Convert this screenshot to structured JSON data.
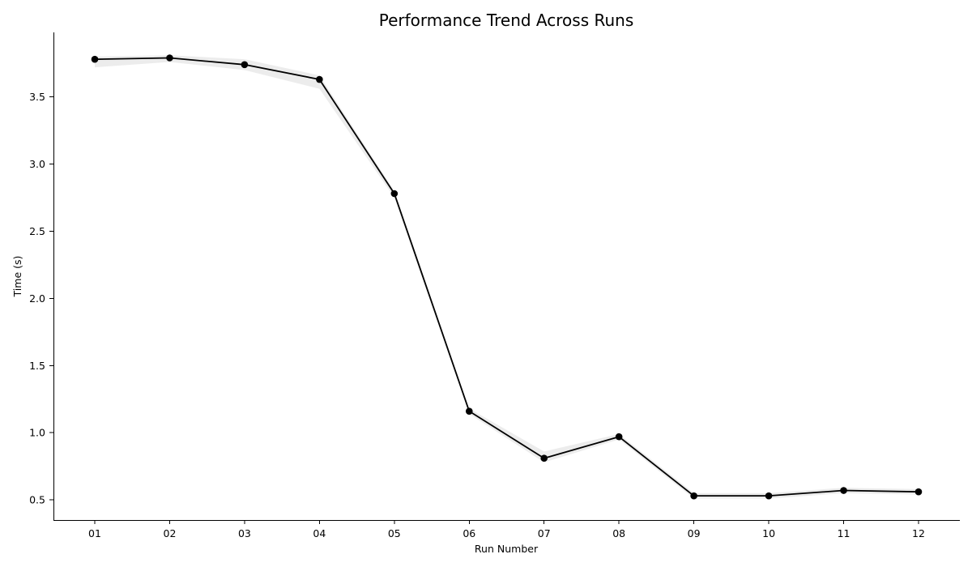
{
  "chart_data": {
    "type": "line",
    "title": "Performance Trend Across Runs",
    "xlabel": "Run Number",
    "ylabel": "Time (s)",
    "categories": [
      "01",
      "02",
      "03",
      "04",
      "05",
      "06",
      "07",
      "08",
      "09",
      "10",
      "11",
      "12"
    ],
    "series": [
      {
        "values": [
          3.78,
          3.79,
          3.74,
          3.63,
          2.78,
          1.16,
          0.81,
          0.97,
          0.53,
          0.53,
          0.57,
          0.56
        ],
        "band_lower": [
          3.72,
          3.76,
          3.7,
          3.56,
          2.75,
          1.14,
          0.78,
          0.95,
          0.51,
          0.51,
          0.55,
          0.54
        ],
        "band_upper": [
          3.8,
          3.81,
          3.78,
          3.66,
          2.8,
          1.18,
          0.86,
          0.99,
          0.55,
          0.55,
          0.59,
          0.58
        ],
        "color": "#000000",
        "band_color": "#d9d9d9"
      }
    ],
    "yticks": [
      0.5,
      1.0,
      1.5,
      2.0,
      2.5,
      3.0,
      3.5
    ],
    "ytick_labels": [
      "0.5",
      "1.0",
      "1.5",
      "2.0",
      "2.5",
      "3.0",
      "3.5"
    ],
    "ylim": [
      0.35,
      3.98
    ],
    "grid": false,
    "legend": "none"
  }
}
